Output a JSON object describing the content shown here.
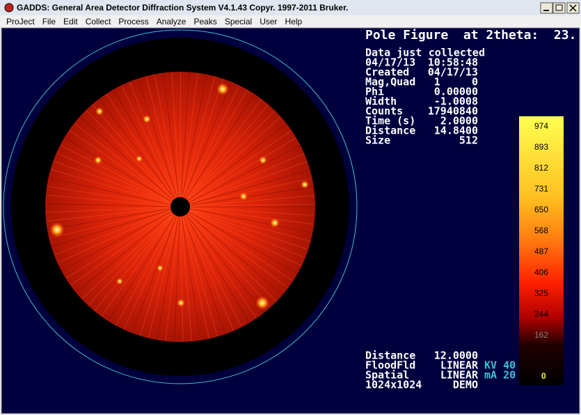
{
  "window": {
    "title": "GADDS: General Area Detector Diffraction System V4.1.43  Copyr. 1997-2011 Bruker.",
    "menu": [
      "ProJect",
      "File",
      "Edit",
      "Collect",
      "Process",
      "Analyze",
      "Peaks",
      "Special",
      "User",
      "Help"
    ]
  },
  "header": "Pole Figure  at 2theta:  23.",
  "info": [
    {
      "label": "Data just",
      "value": "collected"
    },
    {
      "label": "04/17/13",
      "value": "10:58:48"
    },
    {
      "label": "Created",
      "value": "04/17/13"
    },
    {
      "label": "Mag,Quad",
      "value": "1     0"
    },
    {
      "label": "Phi",
      "value": "0.00000"
    },
    {
      "label": "Width",
      "value": "-1.0008"
    },
    {
      "label": "Counts",
      "value": "17940840"
    },
    {
      "label": "Time (s)",
      "value": "2.0000"
    },
    {
      "label": "Distance",
      "value": "14.8400"
    },
    {
      "label": "Size",
      "value": "512"
    }
  ],
  "color_scale": [
    974,
    893,
    812,
    731,
    650,
    568,
    487,
    406,
    325,
    244,
    162,
    0
  ],
  "footer": [
    {
      "label": "Distance",
      "value": "12.0000"
    },
    {
      "label": "FloodFld",
      "value": "LINEAR",
      "extra": "KV 40"
    },
    {
      "label": "Spatial",
      "value": "LINEAR",
      "extra": "mA 20"
    },
    {
      "label": "1024x1024",
      "value": "DEMO"
    }
  ]
}
